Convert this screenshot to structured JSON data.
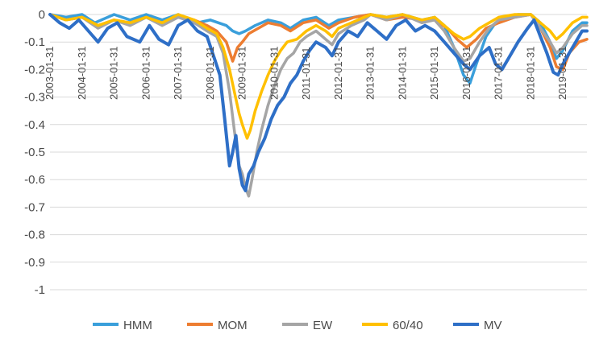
{
  "chart_data": {
    "type": "line",
    "ylim": [
      -1,
      0
    ],
    "y_ticks": [
      "0",
      "-0.1",
      "-0.2",
      "-0.3",
      "-0.4",
      "-0.5",
      "-0.6",
      "-0.7",
      "-0.8",
      "-0.9",
      "-1"
    ],
    "x_tick_labels": [
      "2003-01-31",
      "2004-01-31",
      "2005-01-31",
      "2006-01-31",
      "2007-01-31",
      "2008-01-31",
      "2009-01-31",
      "2010-01-31",
      "2011-01-31",
      "2012-01-31",
      "2013-01-31",
      "2014-01-31",
      "2015-01-31",
      "2016-01-31",
      "2017-01-31",
      "2018-01-31",
      "2019-01-31"
    ],
    "grid": true,
    "legend_position": "bottom",
    "x_range": [
      2003.0,
      2019.75
    ],
    "series": [
      {
        "name": "HMM",
        "color": "#3a9fdb",
        "points": [
          [
            2003.0,
            0
          ],
          [
            2003.5,
            -0.01
          ],
          [
            2004.0,
            0
          ],
          [
            2004.4,
            -0.03
          ],
          [
            2005.0,
            0
          ],
          [
            2005.5,
            -0.02
          ],
          [
            2006.0,
            0
          ],
          [
            2006.5,
            -0.02
          ],
          [
            2007.0,
            0
          ],
          [
            2007.6,
            -0.03
          ],
          [
            2008.0,
            -0.02
          ],
          [
            2008.5,
            -0.04
          ],
          [
            2008.7,
            -0.06
          ],
          [
            2008.9,
            -0.07
          ],
          [
            2009.1,
            -0.06
          ],
          [
            2009.4,
            -0.04
          ],
          [
            2009.8,
            -0.02
          ],
          [
            2010.2,
            -0.03
          ],
          [
            2010.5,
            -0.05
          ],
          [
            2010.9,
            -0.02
          ],
          [
            2011.3,
            -0.01
          ],
          [
            2011.7,
            -0.04
          ],
          [
            2012.0,
            -0.02
          ],
          [
            2012.5,
            -0.01
          ],
          [
            2013.0,
            0
          ],
          [
            2013.5,
            -0.01
          ],
          [
            2014.0,
            0
          ],
          [
            2014.6,
            -0.02
          ],
          [
            2015.0,
            -0.01
          ],
          [
            2015.3,
            -0.04
          ],
          [
            2015.6,
            -0.12
          ],
          [
            2015.9,
            -0.22
          ],
          [
            2016.1,
            -0.25
          ],
          [
            2016.3,
            -0.18
          ],
          [
            2016.6,
            -0.08
          ],
          [
            2016.9,
            -0.03
          ],
          [
            2017.2,
            -0.01
          ],
          [
            2017.6,
            0
          ],
          [
            2018.0,
            0
          ],
          [
            2018.3,
            -0.03
          ],
          [
            2018.6,
            -0.1
          ],
          [
            2018.8,
            -0.16
          ],
          [
            2019.0,
            -0.13
          ],
          [
            2019.3,
            -0.06
          ],
          [
            2019.6,
            -0.03
          ],
          [
            2019.75,
            -0.03
          ]
        ]
      },
      {
        "name": "MOM",
        "color": "#ed7d31",
        "points": [
          [
            2003.0,
            0
          ],
          [
            2003.5,
            -0.02
          ],
          [
            2004.0,
            -0.01
          ],
          [
            2004.5,
            -0.04
          ],
          [
            2005.0,
            -0.02
          ],
          [
            2005.5,
            -0.03
          ],
          [
            2006.0,
            -0.01
          ],
          [
            2006.5,
            -0.03
          ],
          [
            2007.0,
            -0.01
          ],
          [
            2007.5,
            -0.02
          ],
          [
            2007.9,
            -0.04
          ],
          [
            2008.2,
            -0.06
          ],
          [
            2008.5,
            -0.1
          ],
          [
            2008.7,
            -0.17
          ],
          [
            2008.85,
            -0.12
          ],
          [
            2009.0,
            -0.1
          ],
          [
            2009.2,
            -0.07
          ],
          [
            2009.5,
            -0.05
          ],
          [
            2009.8,
            -0.03
          ],
          [
            2010.2,
            -0.04
          ],
          [
            2010.5,
            -0.06
          ],
          [
            2010.9,
            -0.03
          ],
          [
            2011.3,
            -0.02
          ],
          [
            2011.7,
            -0.05
          ],
          [
            2012.0,
            -0.03
          ],
          [
            2012.5,
            -0.01
          ],
          [
            2013.0,
            0
          ],
          [
            2013.5,
            -0.02
          ],
          [
            2014.0,
            -0.01
          ],
          [
            2014.6,
            -0.02
          ],
          [
            2015.0,
            -0.02
          ],
          [
            2015.4,
            -0.05
          ],
          [
            2015.7,
            -0.09
          ],
          [
            2016.0,
            -0.12
          ],
          [
            2016.3,
            -0.09
          ],
          [
            2016.6,
            -0.05
          ],
          [
            2017.0,
            -0.03
          ],
          [
            2017.5,
            -0.01
          ],
          [
            2018.0,
            0
          ],
          [
            2018.3,
            -0.05
          ],
          [
            2018.6,
            -0.12
          ],
          [
            2018.8,
            -0.19
          ],
          [
            2019.0,
            -0.2
          ],
          [
            2019.2,
            -0.14
          ],
          [
            2019.5,
            -0.1
          ],
          [
            2019.75,
            -0.09
          ]
        ]
      },
      {
        "name": "EW",
        "color": "#a5a5a5",
        "points": [
          [
            2003.0,
            0
          ],
          [
            2003.5,
            -0.02
          ],
          [
            2004.0,
            -0.01
          ],
          [
            2004.5,
            -0.05
          ],
          [
            2005.0,
            -0.02
          ],
          [
            2005.5,
            -0.04
          ],
          [
            2006.0,
            -0.01
          ],
          [
            2006.5,
            -0.04
          ],
          [
            2007.0,
            -0.01
          ],
          [
            2007.5,
            -0.03
          ],
          [
            2007.9,
            -0.06
          ],
          [
            2008.2,
            -0.08
          ],
          [
            2008.4,
            -0.14
          ],
          [
            2008.6,
            -0.28
          ],
          [
            2008.75,
            -0.42
          ],
          [
            2008.9,
            -0.55
          ],
          [
            2009.0,
            -0.58
          ],
          [
            2009.1,
            -0.63
          ],
          [
            2009.2,
            -0.66
          ],
          [
            2009.3,
            -0.6
          ],
          [
            2009.45,
            -0.5
          ],
          [
            2009.6,
            -0.42
          ],
          [
            2009.8,
            -0.33
          ],
          [
            2010.0,
            -0.26
          ],
          [
            2010.2,
            -0.2
          ],
          [
            2010.4,
            -0.16
          ],
          [
            2010.6,
            -0.14
          ],
          [
            2010.8,
            -0.1
          ],
          [
            2011.0,
            -0.08
          ],
          [
            2011.3,
            -0.06
          ],
          [
            2011.6,
            -0.09
          ],
          [
            2011.8,
            -0.11
          ],
          [
            2012.0,
            -0.07
          ],
          [
            2012.4,
            -0.04
          ],
          [
            2012.8,
            -0.02
          ],
          [
            2013.0,
            0
          ],
          [
            2013.5,
            -0.02
          ],
          [
            2014.0,
            0
          ],
          [
            2014.6,
            -0.03
          ],
          [
            2015.0,
            -0.02
          ],
          [
            2015.3,
            -0.06
          ],
          [
            2015.6,
            -0.12
          ],
          [
            2015.9,
            -0.17
          ],
          [
            2016.1,
            -0.16
          ],
          [
            2016.4,
            -0.1
          ],
          [
            2016.7,
            -0.05
          ],
          [
            2017.0,
            -0.02
          ],
          [
            2017.5,
            -0.01
          ],
          [
            2018.0,
            0
          ],
          [
            2018.3,
            -0.05
          ],
          [
            2018.6,
            -0.1
          ],
          [
            2018.8,
            -0.14
          ],
          [
            2019.0,
            -0.12
          ],
          [
            2019.3,
            -0.07
          ],
          [
            2019.6,
            -0.04
          ],
          [
            2019.75,
            -0.04
          ]
        ]
      },
      {
        "name": "60/40",
        "color": "#ffc000",
        "points": [
          [
            2003.0,
            0
          ],
          [
            2003.5,
            -0.02
          ],
          [
            2004.0,
            -0.01
          ],
          [
            2004.5,
            -0.04
          ],
          [
            2005.0,
            -0.02
          ],
          [
            2005.5,
            -0.03
          ],
          [
            2006.0,
            -0.01
          ],
          [
            2006.5,
            -0.03
          ],
          [
            2007.0,
            0
          ],
          [
            2007.5,
            -0.02
          ],
          [
            2007.9,
            -0.05
          ],
          [
            2008.2,
            -0.07
          ],
          [
            2008.4,
            -0.12
          ],
          [
            2008.6,
            -0.2
          ],
          [
            2008.75,
            -0.28
          ],
          [
            2008.9,
            -0.36
          ],
          [
            2009.0,
            -0.4
          ],
          [
            2009.15,
            -0.45
          ],
          [
            2009.25,
            -0.42
          ],
          [
            2009.4,
            -0.35
          ],
          [
            2009.6,
            -0.28
          ],
          [
            2009.8,
            -0.22
          ],
          [
            2010.0,
            -0.17
          ],
          [
            2010.2,
            -0.13
          ],
          [
            2010.4,
            -0.1
          ],
          [
            2010.7,
            -0.09
          ],
          [
            2011.0,
            -0.06
          ],
          [
            2011.3,
            -0.04
          ],
          [
            2011.6,
            -0.06
          ],
          [
            2011.8,
            -0.08
          ],
          [
            2012.0,
            -0.05
          ],
          [
            2012.4,
            -0.03
          ],
          [
            2012.8,
            -0.01
          ],
          [
            2013.0,
            0
          ],
          [
            2013.5,
            -0.01
          ],
          [
            2014.0,
            0
          ],
          [
            2014.6,
            -0.02
          ],
          [
            2015.0,
            -0.01
          ],
          [
            2015.3,
            -0.04
          ],
          [
            2015.6,
            -0.07
          ],
          [
            2015.9,
            -0.09
          ],
          [
            2016.1,
            -0.08
          ],
          [
            2016.4,
            -0.05
          ],
          [
            2016.7,
            -0.03
          ],
          [
            2017.0,
            -0.01
          ],
          [
            2017.5,
            0
          ],
          [
            2018.0,
            0
          ],
          [
            2018.3,
            -0.03
          ],
          [
            2018.6,
            -0.06
          ],
          [
            2018.8,
            -0.09
          ],
          [
            2019.0,
            -0.07
          ],
          [
            2019.3,
            -0.03
          ],
          [
            2019.6,
            -0.01
          ],
          [
            2019.75,
            -0.01
          ]
        ]
      },
      {
        "name": "MV",
        "color": "#2e6fc7",
        "points": [
          [
            2003.0,
            0
          ],
          [
            2003.3,
            -0.03
          ],
          [
            2003.6,
            -0.05
          ],
          [
            2003.9,
            -0.02
          ],
          [
            2004.2,
            -0.06
          ],
          [
            2004.5,
            -0.1
          ],
          [
            2004.8,
            -0.05
          ],
          [
            2005.1,
            -0.03
          ],
          [
            2005.4,
            -0.08
          ],
          [
            2005.8,
            -0.1
          ],
          [
            2006.1,
            -0.04
          ],
          [
            2006.4,
            -0.09
          ],
          [
            2006.7,
            -0.11
          ],
          [
            2007.0,
            -0.04
          ],
          [
            2007.3,
            -0.02
          ],
          [
            2007.6,
            -0.06
          ],
          [
            2007.9,
            -0.08
          ],
          [
            2008.1,
            -0.15
          ],
          [
            2008.3,
            -0.22
          ],
          [
            2008.45,
            -0.38
          ],
          [
            2008.6,
            -0.55
          ],
          [
            2008.7,
            -0.5
          ],
          [
            2008.8,
            -0.44
          ],
          [
            2008.9,
            -0.56
          ],
          [
            2009.0,
            -0.62
          ],
          [
            2009.1,
            -0.64
          ],
          [
            2009.2,
            -0.58
          ],
          [
            2009.35,
            -0.55
          ],
          [
            2009.5,
            -0.5
          ],
          [
            2009.7,
            -0.45
          ],
          [
            2009.9,
            -0.38
          ],
          [
            2010.1,
            -0.33
          ],
          [
            2010.3,
            -0.3
          ],
          [
            2010.5,
            -0.25
          ],
          [
            2010.7,
            -0.22
          ],
          [
            2010.9,
            -0.17
          ],
          [
            2011.1,
            -0.13
          ],
          [
            2011.3,
            -0.1
          ],
          [
            2011.6,
            -0.12
          ],
          [
            2011.8,
            -0.15
          ],
          [
            2012.0,
            -0.1
          ],
          [
            2012.3,
            -0.06
          ],
          [
            2012.6,
            -0.08
          ],
          [
            2012.9,
            -0.03
          ],
          [
            2013.2,
            -0.06
          ],
          [
            2013.5,
            -0.09
          ],
          [
            2013.8,
            -0.04
          ],
          [
            2014.1,
            -0.02
          ],
          [
            2014.4,
            -0.06
          ],
          [
            2014.7,
            -0.04
          ],
          [
            2015.0,
            -0.06
          ],
          [
            2015.3,
            -0.1
          ],
          [
            2015.6,
            -0.14
          ],
          [
            2015.9,
            -0.18
          ],
          [
            2016.1,
            -0.2
          ],
          [
            2016.4,
            -0.15
          ],
          [
            2016.7,
            -0.12
          ],
          [
            2016.9,
            -0.18
          ],
          [
            2017.1,
            -0.2
          ],
          [
            2017.3,
            -0.16
          ],
          [
            2017.6,
            -0.1
          ],
          [
            2017.9,
            -0.05
          ],
          [
            2018.1,
            -0.02
          ],
          [
            2018.3,
            -0.08
          ],
          [
            2018.5,
            -0.14
          ],
          [
            2018.7,
            -0.21
          ],
          [
            2018.85,
            -0.22
          ],
          [
            2019.0,
            -0.18
          ],
          [
            2019.2,
            -0.14
          ],
          [
            2019.4,
            -0.1
          ],
          [
            2019.6,
            -0.06
          ],
          [
            2019.75,
            -0.06
          ]
        ]
      }
    ]
  }
}
